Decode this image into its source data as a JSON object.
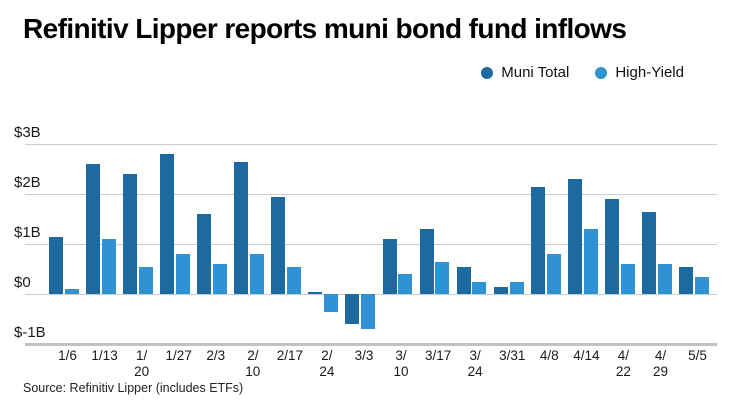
{
  "title": "Refinitiv Lipper reports muni bond fund inflows",
  "source": "Source: Refinitiv Lipper (includes ETFs)",
  "legend": [
    {
      "label": "Muni Total",
      "color": "#1c6a9f"
    },
    {
      "label": "High-Yield",
      "color": "#2e92d5"
    }
  ],
  "colors": {
    "muni_total": "#1c6a9f",
    "high_yield": "#2e92d5",
    "gridline": "#cccccc",
    "baseline": "#c2c2c2",
    "text": "#1a1a1a"
  },
  "chart_data": {
    "type": "bar",
    "title": "Refinitiv Lipper reports muni bond fund inflows",
    "xlabel": "",
    "ylabel": "",
    "unit": "billions USD",
    "categories": [
      "1/6",
      "1/13",
      "1/20",
      "1/27",
      "2/3",
      "2/10",
      "2/17",
      "2/24",
      "3/3",
      "3/10",
      "3/17",
      "3/24",
      "3/31",
      "4/8",
      "4/14",
      "4/22",
      "4/29",
      "5/5"
    ],
    "wrapped_categories": [
      "1/20",
      "2/10",
      "2/24",
      "3/10",
      "3/24",
      "4/22",
      "4/29"
    ],
    "series": [
      {
        "name": "Muni Total",
        "color": "#1c6a9f",
        "values": [
          1.15,
          2.6,
          2.4,
          2.8,
          1.6,
          2.65,
          1.95,
          0.05,
          -0.6,
          1.1,
          1.3,
          0.55,
          0.15,
          2.15,
          2.3,
          1.9,
          1.65,
          0.55
        ]
      },
      {
        "name": "High-Yield",
        "color": "#2e92d5",
        "values": [
          0.1,
          1.1,
          0.55,
          0.8,
          0.6,
          0.8,
          0.55,
          -0.35,
          -0.7,
          0.4,
          0.65,
          0.25,
          0.25,
          0.8,
          1.3,
          0.6,
          0.6,
          0.35
        ]
      }
    ],
    "ytick_labels": [
      "$3B",
      "$2B",
      "$1B",
      "$0",
      "$-1B"
    ],
    "ytick_values": [
      3,
      2,
      1,
      0,
      -1
    ],
    "ylim": [
      -1,
      3
    ],
    "grid": true,
    "legend_position": "top-right"
  }
}
